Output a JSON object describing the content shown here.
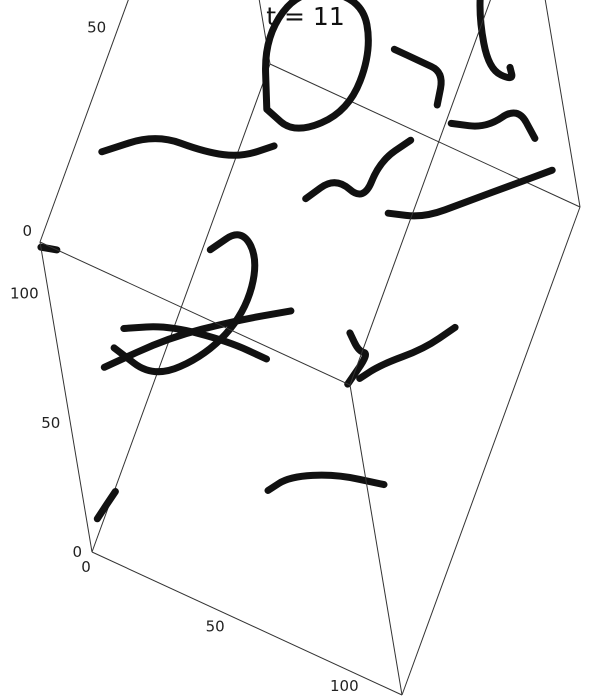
{
  "chart_data": {
    "type": "scatter",
    "title": "t = 11",
    "xlabel": "",
    "ylabel": "",
    "zlabel": "",
    "xlim": [
      0,
      120
    ],
    "ylim": [
      0,
      120
    ],
    "zlim": [
      0,
      120
    ],
    "x_ticks": [
      "0",
      "50",
      "100"
    ],
    "y_ticks": [
      "0",
      "50",
      "100"
    ],
    "z_ticks": [
      "0",
      "50",
      "100"
    ],
    "series": [
      {
        "points": [
          [
            110,
            10,
            100
          ],
          [
            112,
            20,
            97
          ],
          [
            106,
            22,
            92
          ],
          [
            100,
            26,
            90
          ]
        ]
      },
      {
        "points": [
          [
            0,
            0,
            118
          ],
          [
            2,
            5,
            110
          ]
        ]
      },
      {
        "points": [
          [
            5,
            30,
            110
          ],
          [
            20,
            40,
            108
          ],
          [
            35,
            45,
            100
          ],
          [
            45,
            50,
            95
          ],
          [
            55,
            55,
            96
          ]
        ]
      },
      {
        "points": [
          [
            50,
            60,
            100
          ],
          [
            45,
            70,
            110
          ],
          [
            55,
            80,
            118
          ],
          [
            75,
            85,
            115
          ],
          [
            80,
            80,
            105
          ],
          [
            75,
            70,
            95
          ],
          [
            60,
            60,
            95
          ],
          [
            50,
            60,
            100
          ]
        ]
      },
      {
        "points": [
          [
            20,
            10,
            80
          ],
          [
            30,
            20,
            70
          ],
          [
            45,
            30,
            55
          ],
          [
            55,
            35,
            45
          ]
        ]
      },
      {
        "points": [
          [
            0,
            20,
            40
          ],
          [
            20,
            30,
            45
          ],
          [
            40,
            40,
            45
          ],
          [
            55,
            50,
            40
          ]
        ]
      },
      {
        "points": [
          [
            10,
            15,
            60
          ],
          [
            20,
            20,
            45
          ],
          [
            30,
            35,
            35
          ],
          [
            40,
            45,
            40
          ],
          [
            45,
            50,
            55
          ],
          [
            40,
            50,
            65
          ],
          [
            30,
            45,
            60
          ]
        ]
      },
      {
        "points": [
          [
            0,
            5,
            5
          ],
          [
            5,
            10,
            10
          ]
        ]
      },
      {
        "points": [
          [
            60,
            60,
            70
          ],
          [
            65,
            70,
            65
          ],
          [
            75,
            70,
            60
          ],
          [
            80,
            75,
            70
          ],
          [
            90,
            80,
            75
          ]
        ]
      },
      {
        "points": [
          [
            85,
            85,
            100
          ],
          [
            90,
            90,
            90
          ],
          [
            95,
            95,
            80
          ],
          [
            90,
            95,
            65
          ]
        ]
      },
      {
        "points": [
          [
            80,
            75,
            50
          ],
          [
            90,
            80,
            45
          ],
          [
            100,
            90,
            40
          ],
          [
            110,
            100,
            35
          ],
          [
            120,
            110,
            30
          ]
        ]
      },
      {
        "points": [
          [
            100,
            110,
            110
          ],
          [
            105,
            112,
            100
          ],
          [
            100,
            115,
            90
          ],
          [
            100,
            110,
            80
          ],
          [
            105,
            105,
            70
          ],
          [
            110,
            110,
            60
          ],
          [
            105,
            115,
            55
          ]
        ]
      },
      {
        "points": [
          [
            110,
            120,
            100
          ],
          [
            112,
            120,
            90
          ],
          [
            110,
            118,
            80
          ]
        ]
      },
      {
        "points": [
          [
            60,
            20,
            20
          ],
          [
            70,
            20,
            30
          ],
          [
            85,
            25,
            30
          ],
          [
            100,
            30,
            25
          ]
        ]
      },
      {
        "points": [
          [
            70,
            60,
            5
          ],
          [
            80,
            60,
            15
          ],
          [
            90,
            70,
            10
          ],
          [
            100,
            75,
            15
          ]
        ]
      },
      {
        "points": [
          [
            90,
            100,
            50
          ],
          [
            100,
            105,
            45
          ],
          [
            110,
            110,
            50
          ],
          [
            115,
            110,
            40
          ]
        ]
      }
    ]
  }
}
